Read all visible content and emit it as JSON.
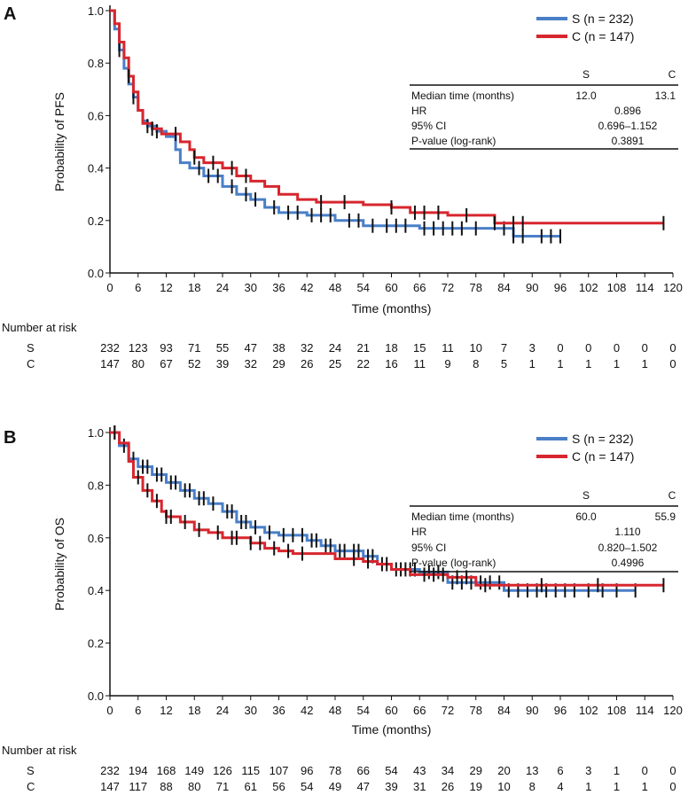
{
  "colors": {
    "S": "#4a7fc8",
    "C": "#d7262e",
    "axis": "#111111",
    "censor": "#111111"
  },
  "chart_data": [
    {
      "type": "line",
      "panel_label": "A",
      "ylabel": "Probability of PFS",
      "xlabel": "Time (months)",
      "xlim": [
        0,
        120
      ],
      "ylim": [
        0,
        1
      ],
      "xticks": [
        0,
        6,
        12,
        18,
        24,
        30,
        36,
        42,
        48,
        54,
        60,
        66,
        72,
        78,
        84,
        90,
        96,
        102,
        108,
        114,
        120
      ],
      "yticks": [
        "0.0",
        "0.2",
        "0.4",
        "0.6",
        "0.8",
        "1.0"
      ],
      "legend": [
        "S (n = 232)",
        "C (n = 147)"
      ],
      "stats": {
        "head_s": "S",
        "head_c": "C",
        "rows": [
          {
            "label": "Median time (months)",
            "s": "12.0",
            "c": "13.1"
          },
          {
            "label": "HR",
            "v": "0.896"
          },
          {
            "label": "95% CI",
            "v": "0.696–1.152"
          },
          {
            "label": "P-value (log-rank)",
            "v": "0.3891"
          }
        ]
      },
      "series": [
        {
          "name": "S",
          "points": [
            [
              0,
              1
            ],
            [
              1,
              0.93
            ],
            [
              2,
              0.85
            ],
            [
              3,
              0.78
            ],
            [
              4,
              0.72
            ],
            [
              5,
              0.67
            ],
            [
              6,
              0.62
            ],
            [
              7,
              0.58
            ],
            [
              8,
              0.56
            ],
            [
              10,
              0.54
            ],
            [
              12,
              0.52
            ],
            [
              14,
              0.47
            ],
            [
              15,
              0.42
            ],
            [
              17,
              0.4
            ],
            [
              20,
              0.37
            ],
            [
              24,
              0.33
            ],
            [
              27,
              0.3
            ],
            [
              30,
              0.28
            ],
            [
              33,
              0.25
            ],
            [
              36,
              0.23
            ],
            [
              42,
              0.22
            ],
            [
              48,
              0.2
            ],
            [
              54,
              0.18
            ],
            [
              66,
              0.17
            ],
            [
              86,
              0.14
            ],
            [
              96,
              0.14
            ]
          ],
          "censored": [
            2,
            5,
            8,
            10,
            19,
            21,
            23,
            26,
            29,
            31,
            35,
            38,
            40,
            43,
            45,
            47,
            51,
            53,
            56,
            59,
            61,
            63,
            67,
            69,
            71,
            73,
            75,
            78,
            84,
            86,
            88,
            92,
            94,
            96
          ]
        },
        {
          "name": "C",
          "points": [
            [
              0,
              1
            ],
            [
              1,
              0.95
            ],
            [
              2,
              0.88
            ],
            [
              3,
              0.82
            ],
            [
              4,
              0.75
            ],
            [
              5,
              0.69
            ],
            [
              6,
              0.62
            ],
            [
              7,
              0.57
            ],
            [
              9,
              0.55
            ],
            [
              11,
              0.53
            ],
            [
              15,
              0.5
            ],
            [
              17,
              0.47
            ],
            [
              18,
              0.44
            ],
            [
              20,
              0.42
            ],
            [
              24,
              0.4
            ],
            [
              27,
              0.37
            ],
            [
              30,
              0.35
            ],
            [
              33,
              0.33
            ],
            [
              36,
              0.3
            ],
            [
              40,
              0.28
            ],
            [
              44,
              0.27
            ],
            [
              54,
              0.26
            ],
            [
              60,
              0.25
            ],
            [
              64,
              0.23
            ],
            [
              72,
              0.22
            ],
            [
              82,
              0.19
            ],
            [
              118,
              0.19
            ]
          ],
          "censored": [
            4,
            9,
            14,
            18,
            22,
            26,
            29,
            45,
            50,
            60,
            65,
            67,
            70,
            76,
            82,
            86,
            88,
            118
          ]
        }
      ],
      "risk": {
        "title": "Number at risk",
        "rows": [
          {
            "name": "S",
            "values": [
              232,
              123,
              93,
              71,
              55,
              47,
              38,
              32,
              24,
              21,
              18,
              15,
              11,
              10,
              7,
              3,
              0,
              0,
              0,
              0,
              0
            ]
          },
          {
            "name": "C",
            "values": [
              147,
              80,
              67,
              52,
              39,
              32,
              29,
              26,
              25,
              22,
              16,
              11,
              9,
              8,
              5,
              1,
              1,
              1,
              1,
              1,
              0
            ]
          }
        ]
      }
    },
    {
      "type": "line",
      "panel_label": "B",
      "ylabel": "Probability of OS",
      "xlabel": "Time (months)",
      "xlim": [
        0,
        120
      ],
      "ylim": [
        0,
        1
      ],
      "xticks": [
        0,
        6,
        12,
        18,
        24,
        30,
        36,
        42,
        48,
        54,
        60,
        66,
        72,
        78,
        84,
        90,
        96,
        102,
        108,
        114,
        120
      ],
      "yticks": [
        "0.0",
        "0.2",
        "0.4",
        "0.6",
        "0.8",
        "1.0"
      ],
      "legend": [
        "S (n = 232)",
        "C (n = 147)"
      ],
      "stats": {
        "head_s": "S",
        "head_c": "C",
        "rows": [
          {
            "label": "Median time (months)",
            "s": "60.0",
            "c": "55.9"
          },
          {
            "label": "HR",
            "v": "1.110"
          },
          {
            "label": "95% CI",
            "v": "0.820–1.502"
          },
          {
            "label": "P-value (log-rank)",
            "v": "0.4996"
          }
        ]
      },
      "series": [
        {
          "name": "S",
          "points": [
            [
              0,
              1
            ],
            [
              2,
              0.95
            ],
            [
              4,
              0.9
            ],
            [
              6,
              0.87
            ],
            [
              9,
              0.84
            ],
            [
              12,
              0.81
            ],
            [
              15,
              0.78
            ],
            [
              18,
              0.75
            ],
            [
              21,
              0.73
            ],
            [
              24,
              0.7
            ],
            [
              27,
              0.66
            ],
            [
              30,
              0.64
            ],
            [
              33,
              0.62
            ],
            [
              36,
              0.61
            ],
            [
              42,
              0.59
            ],
            [
              45,
              0.57
            ],
            [
              48,
              0.55
            ],
            [
              54,
              0.53
            ],
            [
              57,
              0.5
            ],
            [
              60,
              0.48
            ],
            [
              66,
              0.47
            ],
            [
              72,
              0.43
            ],
            [
              84,
              0.4
            ],
            [
              112,
              0.4
            ]
          ],
          "censored": [
            1,
            3,
            5,
            7,
            8,
            10,
            11,
            13,
            14,
            16,
            17,
            19,
            20,
            22,
            25,
            26,
            28,
            29,
            31,
            34,
            37,
            39,
            41,
            43,
            44,
            46,
            47,
            49,
            50,
            52,
            53,
            55,
            56,
            58,
            61,
            62,
            64,
            65,
            68,
            70,
            73,
            75,
            77,
            79,
            81,
            83,
            85,
            87,
            89,
            91,
            93,
            95,
            97,
            99,
            102,
            105,
            108,
            112
          ]
        },
        {
          "name": "C",
          "points": [
            [
              0,
              1
            ],
            [
              2,
              0.96
            ],
            [
              4,
              0.89
            ],
            [
              5,
              0.83
            ],
            [
              7,
              0.78
            ],
            [
              9,
              0.74
            ],
            [
              11,
              0.7
            ],
            [
              12,
              0.68
            ],
            [
              15,
              0.66
            ],
            [
              18,
              0.63
            ],
            [
              21,
              0.62
            ],
            [
              24,
              0.6
            ],
            [
              30,
              0.58
            ],
            [
              33,
              0.56
            ],
            [
              36,
              0.55
            ],
            [
              39,
              0.54
            ],
            [
              48,
              0.52
            ],
            [
              54,
              0.51
            ],
            [
              57,
              0.5
            ],
            [
              60,
              0.48
            ],
            [
              64,
              0.46
            ],
            [
              72,
              0.45
            ],
            [
              78,
              0.42
            ],
            [
              118,
              0.42
            ]
          ],
          "censored": [
            1,
            6,
            8,
            10,
            12,
            13,
            16,
            19,
            23,
            26,
            27,
            30,
            32,
            35,
            38,
            41,
            52,
            55,
            59,
            63,
            67,
            69,
            71,
            74,
            76,
            80,
            92,
            104,
            118
          ]
        }
      ],
      "risk": {
        "title": "Number at risk",
        "rows": [
          {
            "name": "S",
            "values": [
              232,
              194,
              168,
              149,
              126,
              115,
              107,
              96,
              78,
              66,
              54,
              43,
              34,
              29,
              20,
              13,
              6,
              3,
              1,
              0,
              0
            ]
          },
          {
            "name": "C",
            "values": [
              147,
              117,
              88,
              80,
              71,
              61,
              56,
              54,
              49,
              47,
              39,
              31,
              26,
              19,
              10,
              8,
              4,
              1,
              1,
              1,
              0
            ]
          }
        ]
      }
    }
  ]
}
